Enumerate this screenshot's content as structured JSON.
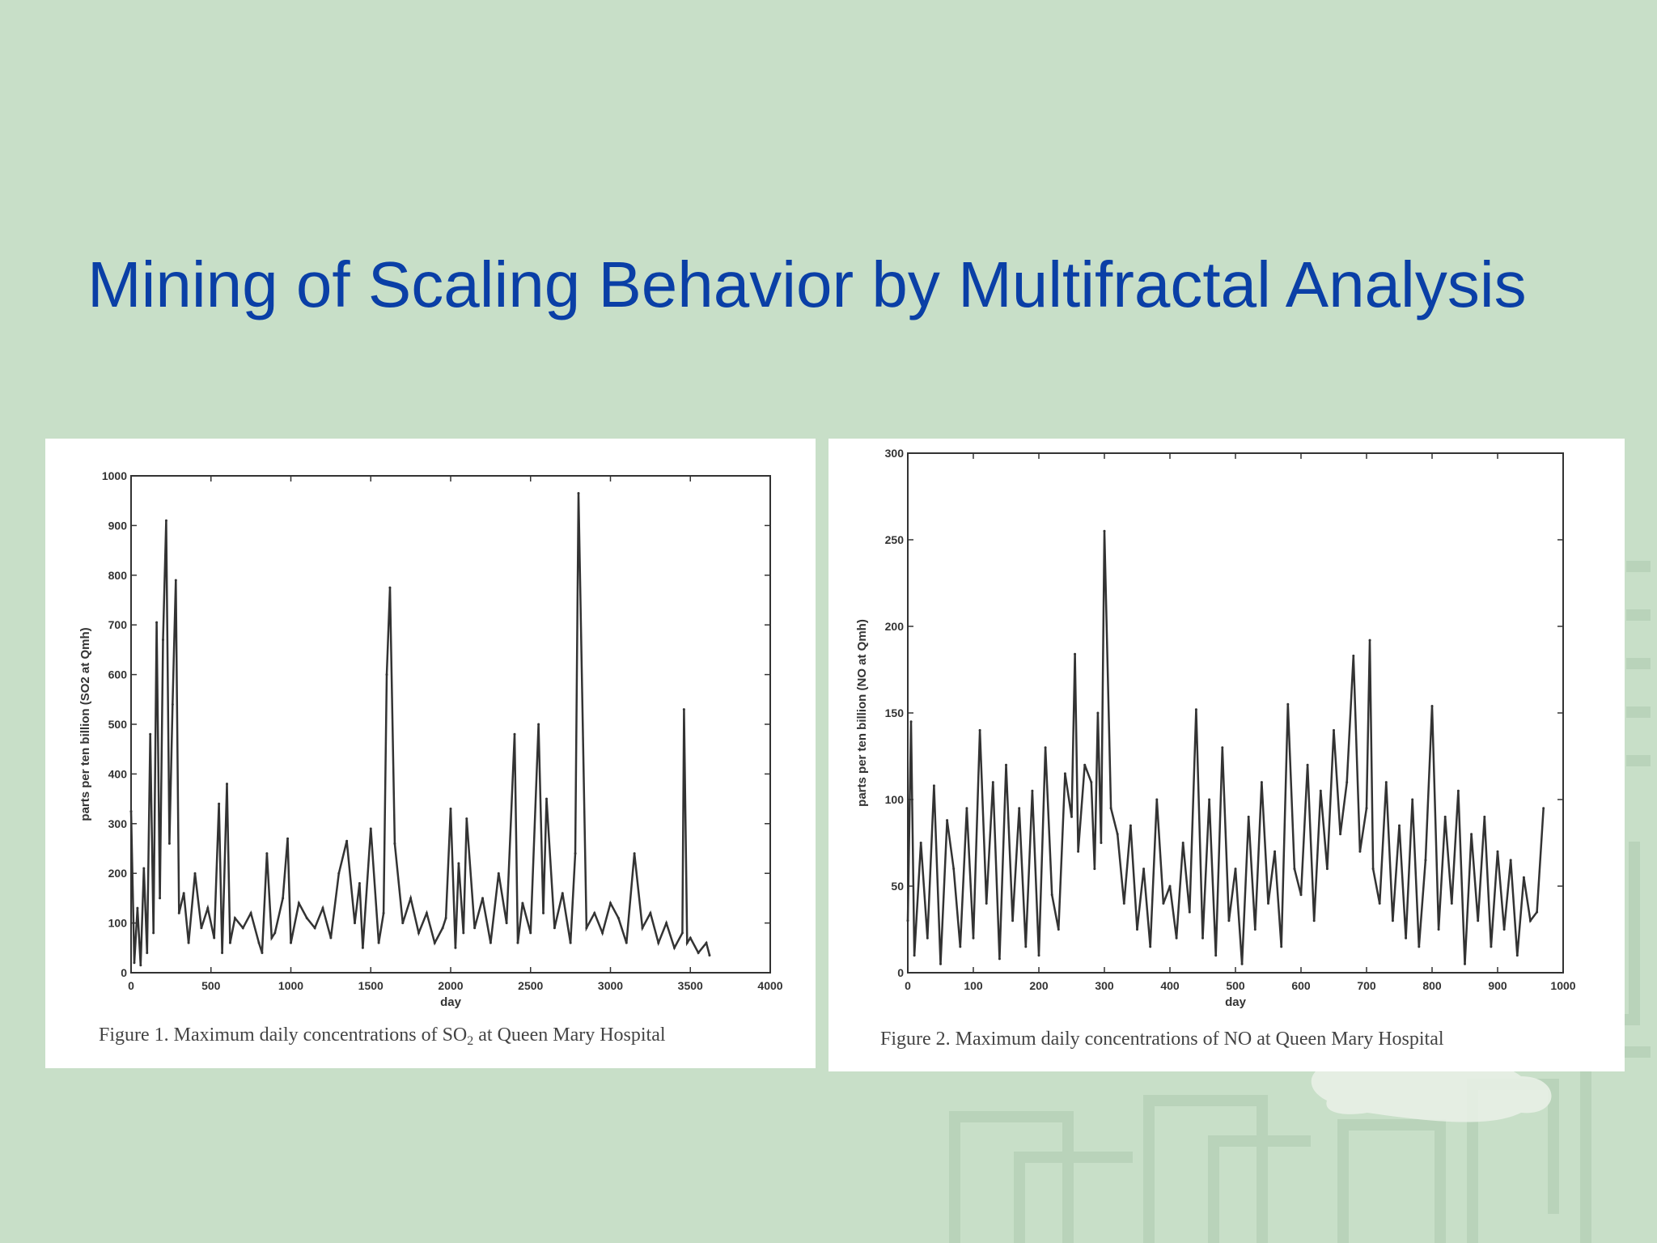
{
  "title": "Mining of Scaling Behavior by Multifractal Analysis",
  "colors": {
    "background": "#c8dfc8",
    "title": "#0a3fa6",
    "plot_line": "#333333",
    "panel": "#ffffff"
  },
  "figures": [
    {
      "caption_pre": "Figure 1. Maximum daily concentrations of SO",
      "caption_sub": "2",
      "caption_post": " at Queen Mary Hospital"
    },
    {
      "caption_pre": "Figure 2. Maximum daily concentrations of NO at Queen Mary Hospital",
      "caption_sub": "",
      "caption_post": ""
    }
  ],
  "chart_data": [
    {
      "type": "line",
      "xlabel": "day",
      "ylabel": "parts per ten billion (SO2 at Qmh)",
      "xlim": [
        0,
        4000
      ],
      "ylim": [
        0,
        1000
      ],
      "xticks": [
        0,
        500,
        1000,
        1500,
        2000,
        2500,
        3000,
        3500,
        4000
      ],
      "yticks": [
        0,
        100,
        200,
        300,
        400,
        500,
        600,
        700,
        800,
        900,
        1000
      ],
      "grid": false,
      "series": [
        {
          "x": [
            0,
            20,
            40,
            60,
            80,
            100,
            120,
            140,
            160,
            180,
            200,
            220,
            240,
            260,
            280,
            300,
            330,
            360,
            400,
            440,
            480,
            520,
            550,
            570,
            600,
            620,
            650,
            700,
            750,
            800,
            820,
            850,
            880,
            900,
            950,
            980,
            1000,
            1050,
            1100,
            1150,
            1200,
            1250,
            1300,
            1350,
            1400,
            1430,
            1450,
            1500,
            1550,
            1580,
            1600,
            1620,
            1650,
            1700,
            1750,
            1800,
            1850,
            1900,
            1950,
            1970,
            2000,
            2030,
            2050,
            2080,
            2100,
            2150,
            2200,
            2250,
            2300,
            2350,
            2400,
            2420,
            2450,
            2500,
            2550,
            2580,
            2600,
            2650,
            2700,
            2750,
            2780,
            2800,
            2850,
            2900,
            2950,
            3000,
            3050,
            3100,
            3150,
            3200,
            3250,
            3300,
            3350,
            3400,
            3450,
            3460,
            3480,
            3500,
            3550,
            3600,
            3620
          ],
          "y": [
            325,
            20,
            130,
            15,
            210,
            40,
            480,
            80,
            705,
            150,
            670,
            910,
            260,
            540,
            790,
            120,
            160,
            60,
            200,
            90,
            130,
            70,
            340,
            40,
            380,
            60,
            110,
            90,
            120,
            60,
            40,
            240,
            70,
            80,
            150,
            270,
            60,
            140,
            110,
            90,
            130,
            70,
            200,
            265,
            100,
            180,
            50,
            290,
            60,
            120,
            600,
            775,
            260,
            100,
            150,
            80,
            120,
            60,
            90,
            110,
            330,
            50,
            220,
            80,
            310,
            90,
            150,
            60,
            200,
            100,
            480,
            60,
            140,
            80,
            500,
            120,
            350,
            90,
            160,
            60,
            240,
            965,
            90,
            120,
            80,
            140,
            110,
            60,
            240,
            90,
            120,
            60,
            100,
            50,
            80,
            530,
            60,
            70,
            40,
            60,
            35
          ]
        }
      ]
    },
    {
      "type": "line",
      "xlabel": "day",
      "ylabel": "parts per ten billion (NO at Qmh)",
      "xlim": [
        0,
        1000
      ],
      "ylim": [
        0,
        300
      ],
      "xticks": [
        0,
        100,
        200,
        300,
        400,
        500,
        600,
        700,
        800,
        900,
        1000
      ],
      "yticks": [
        0,
        50,
        100,
        150,
        200,
        250,
        300
      ],
      "grid": false,
      "series": [
        {
          "x": [
            0,
            5,
            10,
            20,
            30,
            40,
            50,
            60,
            70,
            80,
            90,
            100,
            110,
            120,
            130,
            140,
            150,
            160,
            170,
            180,
            190,
            200,
            210,
            220,
            230,
            240,
            250,
            255,
            260,
            270,
            280,
            285,
            290,
            295,
            300,
            310,
            320,
            330,
            340,
            350,
            360,
            370,
            380,
            390,
            400,
            410,
            420,
            430,
            440,
            450,
            460,
            470,
            480,
            490,
            500,
            510,
            520,
            530,
            540,
            550,
            560,
            570,
            580,
            590,
            600,
            610,
            620,
            630,
            640,
            650,
            660,
            670,
            680,
            690,
            700,
            705,
            710,
            720,
            730,
            740,
            750,
            760,
            770,
            780,
            790,
            800,
            810,
            820,
            830,
            840,
            850,
            860,
            870,
            880,
            890,
            900,
            910,
            920,
            930,
            940,
            950,
            960,
            970
          ],
          "y": [
            30,
            145,
            10,
            75,
            20,
            108,
            5,
            88,
            60,
            15,
            95,
            20,
            140,
            40,
            110,
            8,
            120,
            30,
            95,
            15,
            105,
            10,
            130,
            45,
            25,
            115,
            90,
            184,
            70,
            120,
            110,
            60,
            150,
            75,
            255,
            95,
            80,
            40,
            85,
            25,
            60,
            15,
            100,
            40,
            50,
            20,
            75,
            35,
            152,
            20,
            100,
            10,
            130,
            30,
            60,
            5,
            90,
            25,
            110,
            40,
            70,
            15,
            155,
            60,
            45,
            120,
            30,
            105,
            60,
            140,
            80,
            110,
            183,
            70,
            95,
            192,
            60,
            40,
            110,
            30,
            85,
            20,
            100,
            15,
            65,
            154,
            25,
            90,
            40,
            105,
            5,
            80,
            30,
            90,
            15,
            70,
            25,
            65,
            10,
            55,
            30,
            35,
            95
          ]
        }
      ]
    }
  ]
}
